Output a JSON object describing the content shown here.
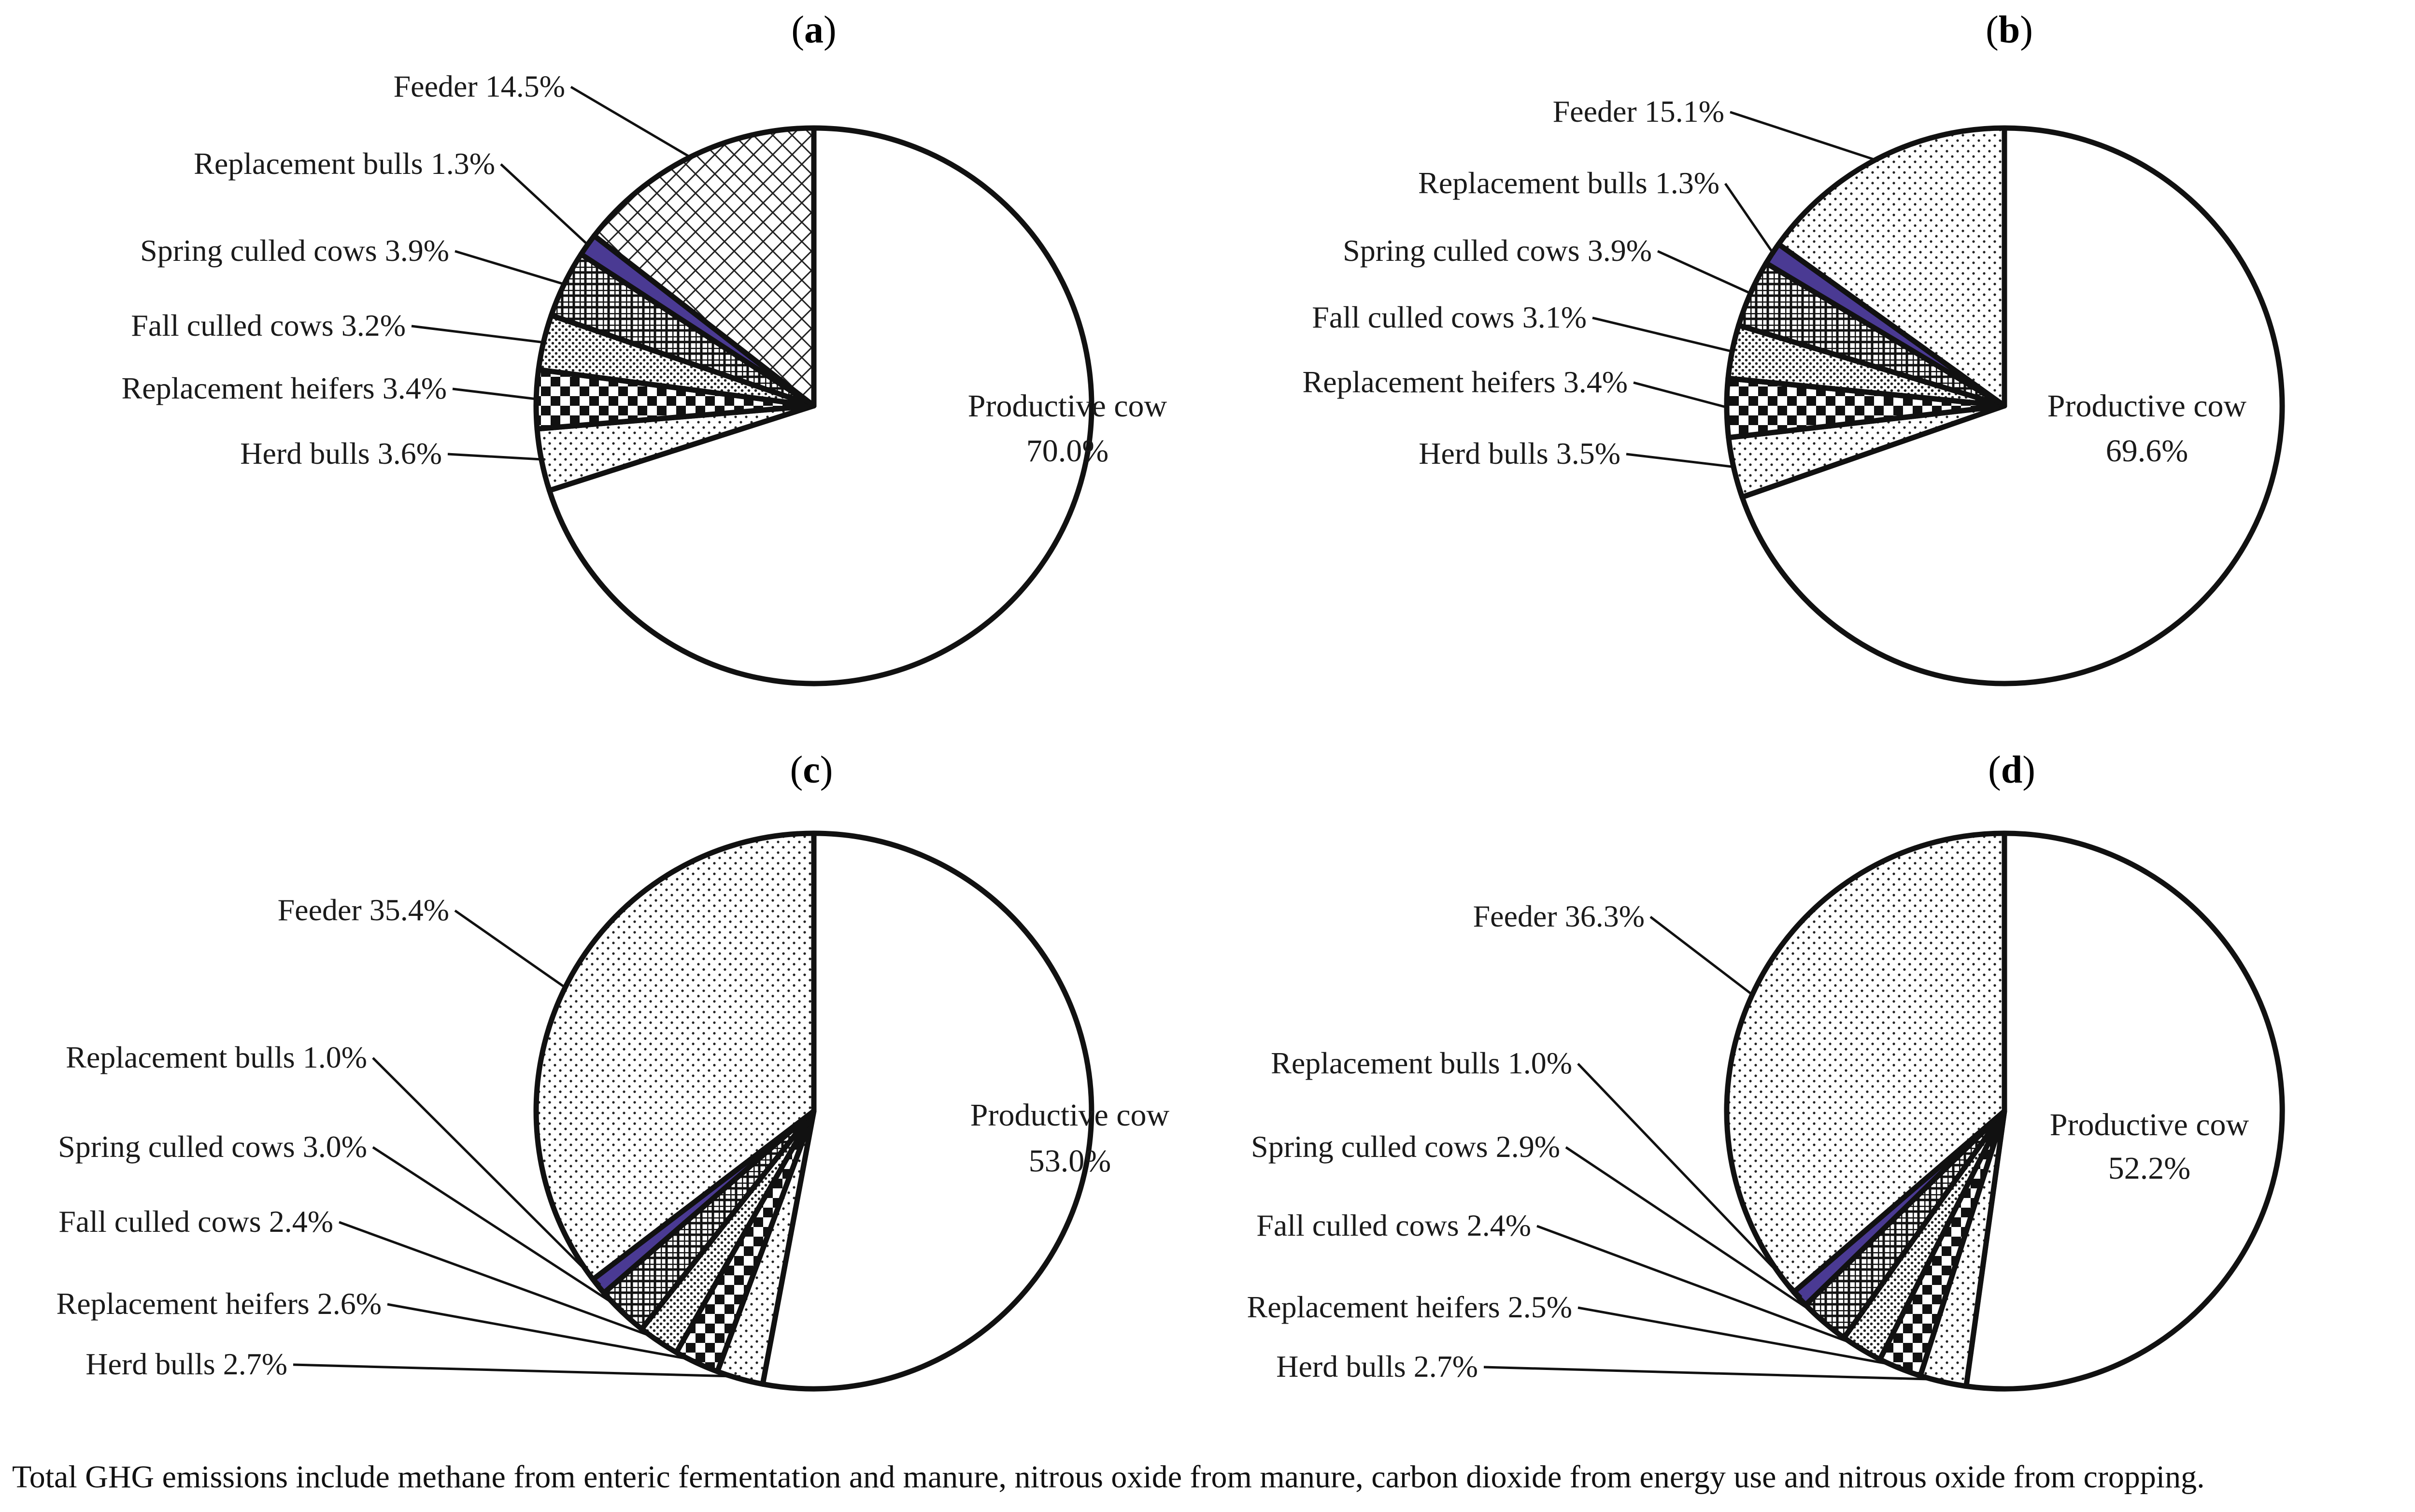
{
  "figure": {
    "footnote": "Total GHG emissions include methane from enteric fermentation and manure, nitrous oxide from manure, carbon dioxide from energy use and nitrous oxide from cropping."
  },
  "colors": {
    "Productive cow": "#ffffff",
    "Herd bulls": "dots-light",
    "Replacement heifers": "checker",
    "Fall culled cows": "dense-dots",
    "Spring culled cows": "grid",
    "Replacement bulls": "#4a3a93",
    "Feeder": "diag-cross / dots"
  },
  "chart_data": [
    {
      "panel": "(a)",
      "type": "pie",
      "slices": [
        {
          "label": "Productive cow",
          "value": 70.0,
          "text": "70.0%"
        },
        {
          "label": "Herd bulls",
          "value": 3.6,
          "text": "Herd bulls 3.6%"
        },
        {
          "label": "Replacement heifers",
          "value": 3.4,
          "text": "Replacement heifers 3.4%"
        },
        {
          "label": "Fall culled cows",
          "value": 3.2,
          "text": "Fall culled cows 3.2%"
        },
        {
          "label": "Spring culled cows",
          "value": 3.9,
          "text": "Spring culled cows 3.9%"
        },
        {
          "label": "Replacement bulls",
          "value": 1.3,
          "text": "Replacement bulls 1.3%"
        },
        {
          "label": "Feeder",
          "value": 14.5,
          "text": "Feeder 14.5%"
        }
      ]
    },
    {
      "panel": "(b)",
      "type": "pie",
      "slices": [
        {
          "label": "Productive cow",
          "value": 69.6,
          "text": "69.6%"
        },
        {
          "label": "Herd bulls",
          "value": 3.5,
          "text": "Herd bulls 3.5%"
        },
        {
          "label": "Replacement heifers",
          "value": 3.4,
          "text": "Replacement heifers 3.4%"
        },
        {
          "label": "Fall culled cows",
          "value": 3.1,
          "text": "Fall culled cows 3.1%"
        },
        {
          "label": "Spring culled cows",
          "value": 3.9,
          "text": "Spring culled cows 3.9%"
        },
        {
          "label": "Replacement bulls",
          "value": 1.3,
          "text": "Replacement bulls 1.3%"
        },
        {
          "label": "Feeder",
          "value": 15.1,
          "text": "Feeder 15.1%"
        }
      ]
    },
    {
      "panel": "(c)",
      "type": "pie",
      "slices": [
        {
          "label": "Productive cow",
          "value": 53.0,
          "text": "53.0%"
        },
        {
          "label": "Herd bulls",
          "value": 2.7,
          "text": "Herd bulls 2.7%"
        },
        {
          "label": "Replacement heifers",
          "value": 2.6,
          "text": "Replacement heifers 2.6%"
        },
        {
          "label": "Fall culled cows",
          "value": 2.4,
          "text": "Fall culled cows 2.4%"
        },
        {
          "label": "Spring culled cows",
          "value": 3.0,
          "text": "Spring culled cows 3.0%"
        },
        {
          "label": "Replacement bulls",
          "value": 1.0,
          "text": "Replacement bulls 1.0%"
        },
        {
          "label": "Feeder",
          "value": 35.4,
          "text": "Feeder 35.4%"
        }
      ]
    },
    {
      "panel": "(d)",
      "type": "pie",
      "slices": [
        {
          "label": "Productive cow",
          "value": 52.2,
          "text": "52.2%"
        },
        {
          "label": "Herd bulls",
          "value": 2.7,
          "text": "Herd bulls 2.7%"
        },
        {
          "label": "Replacement heifers",
          "value": 2.5,
          "text": "Replacement heifers 2.5%"
        },
        {
          "label": "Fall culled cows",
          "value": 2.4,
          "text": "Fall culled cows 2.4%"
        },
        {
          "label": "Spring culled cows",
          "value": 2.9,
          "text": "Spring culled cows 2.9%"
        },
        {
          "label": "Replacement bulls",
          "value": 1.0,
          "text": "Replacement bulls 1.0%"
        },
        {
          "label": "Feeder",
          "value": 36.3,
          "text": "Feeder 36.3%"
        }
      ]
    }
  ]
}
